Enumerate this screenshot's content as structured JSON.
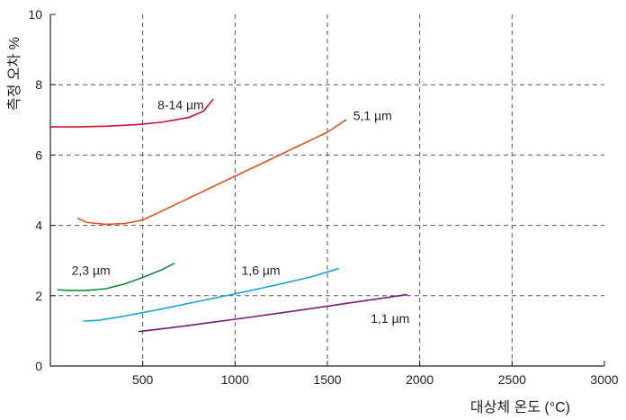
{
  "chart_data": {
    "type": "line",
    "title": "",
    "xlabel": "대상체 온도 (°C)",
    "ylabel": "측정 오차 %",
    "xlim": [
      0,
      3000
    ],
    "ylim": [
      0,
      10
    ],
    "x_ticks": [
      500,
      1000,
      1500,
      2000,
      2500,
      3000
    ],
    "y_ticks": [
      0,
      2,
      4,
      6,
      8,
      10
    ],
    "grid": true,
    "grid_style": "dashed",
    "legend": "none (series labeled inline)",
    "series": [
      {
        "name": "8-14 µm",
        "color": "#c8102e",
        "x": [
          0,
          150,
          300,
          450,
          600,
          750,
          830,
          880
        ],
        "y": [
          6.8,
          6.8,
          6.82,
          6.86,
          6.93,
          7.07,
          7.25,
          7.58
        ]
      },
      {
        "name": "5,1 µm",
        "color": "#e8501e",
        "x": [
          150,
          200,
          300,
          400,
          500,
          700,
          900,
          1100,
          1300,
          1500,
          1600
        ],
        "y": [
          4.2,
          4.08,
          4.03,
          4.05,
          4.15,
          4.65,
          5.15,
          5.65,
          6.15,
          6.65,
          7.0
        ]
      },
      {
        "name": "2,3 µm",
        "color": "#108a3a",
        "x": [
          40,
          100,
          200,
          300,
          400,
          500,
          600,
          670
        ],
        "y": [
          2.17,
          2.15,
          2.15,
          2.2,
          2.33,
          2.52,
          2.73,
          2.92
        ]
      },
      {
        "name": "1,6 µm",
        "color": "#1aa0d8",
        "x": [
          180,
          260,
          400,
          600,
          800,
          1000,
          1200,
          1400,
          1560
        ],
        "y": [
          1.28,
          1.3,
          1.42,
          1.62,
          1.84,
          2.05,
          2.28,
          2.52,
          2.77
        ]
      },
      {
        "name": "1,1 µm",
        "color": "#7a1a7a",
        "x": [
          480,
          700,
          1000,
          1300,
          1600,
          1930
        ],
        "y": [
          0.98,
          1.12,
          1.33,
          1.55,
          1.78,
          2.03
        ]
      }
    ]
  }
}
